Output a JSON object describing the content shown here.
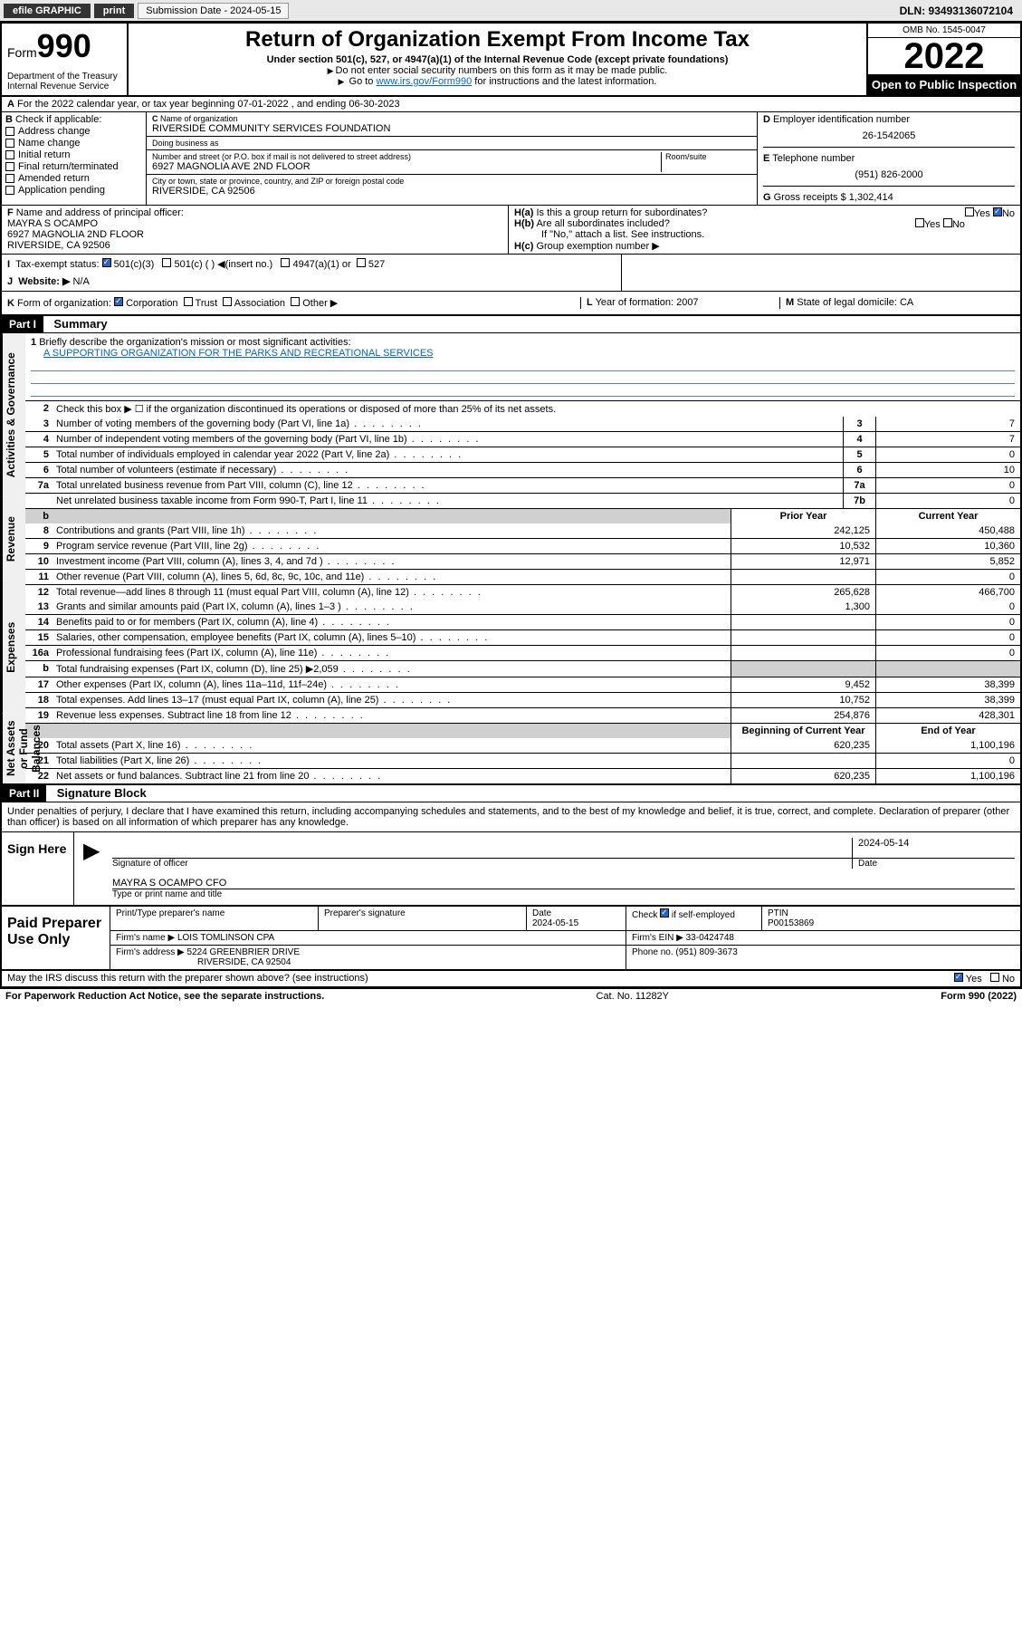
{
  "topbar": {
    "efile": "efile GRAPHIC",
    "print": "print",
    "submission": "Submission Date - 2024-05-15",
    "dln": "DLN: 93493136072104"
  },
  "header": {
    "form_word": "Form",
    "form_num": "990",
    "dept": "Department of the Treasury\nInternal Revenue Service",
    "title": "Return of Organization Exempt From Income Tax",
    "subtitle": "Under section 501(c), 527, or 4947(a)(1) of the Internal Revenue Code (except private foundations)",
    "note1": "Do not enter social security numbers on this form as it may be made public.",
    "note2_pre": "Go to ",
    "note2_link": "www.irs.gov/Form990",
    "note2_post": " for instructions and the latest information.",
    "omb": "OMB No. 1545-0047",
    "year": "2022",
    "open": "Open to Public Inspection"
  },
  "row_a": "For the 2022 calendar year, or tax year beginning 07-01-2022   , and ending 06-30-2023",
  "box_b": {
    "label": "Check if applicable:",
    "items": [
      "Address change",
      "Name change",
      "Initial return",
      "Final return/terminated",
      "Amended return",
      "Application pending"
    ]
  },
  "box_c": {
    "label_name": "Name of organization",
    "name": "RIVERSIDE COMMUNITY SERVICES FOUNDATION",
    "label_dba": "Doing business as",
    "dba": "",
    "label_addr": "Number and street (or P.O. box if mail is not delivered to street address)",
    "label_room": "Room/suite",
    "addr": "6927 MAGNOLIA AVE 2ND FLOOR",
    "label_city": "City or town, state or province, country, and ZIP or foreign postal code",
    "city": "RIVERSIDE, CA  92506"
  },
  "box_d": {
    "label": "Employer identification number",
    "val": "26-1542065"
  },
  "box_e": {
    "label": "Telephone number",
    "val": "(951) 826-2000"
  },
  "box_g": {
    "label": "Gross receipts $",
    "val": "1,302,414"
  },
  "box_f": {
    "label": "Name and address of principal officer:",
    "name": "MAYRA S OCAMPO",
    "addr1": "6927 MAGNOLIA 2ND FLOOR",
    "addr2": "RIVERSIDE, CA  92506"
  },
  "box_h": {
    "a": "Is this a group return for subordinates?",
    "a_yes": "Yes",
    "a_no": "No",
    "b": "Are all subordinates included?",
    "b_note": "If \"No,\" attach a list. See instructions.",
    "c": "Group exemption number"
  },
  "row_i": {
    "label": "Tax-exempt status:",
    "opts": [
      "501(c)(3)",
      "501(c) (  ) ◀(insert no.)",
      "4947(a)(1) or",
      "527"
    ]
  },
  "row_j": {
    "label": "Website:",
    "val": "N/A"
  },
  "row_k": {
    "label": "Form of organization:",
    "opts": [
      "Corporation",
      "Trust",
      "Association",
      "Other"
    ],
    "year_label": "Year of formation:",
    "year": "2007",
    "state_label": "State of legal domicile:",
    "state": "CA"
  },
  "part1": {
    "head": "Part I",
    "title": "Summary",
    "q1": "Briefly describe the organization's mission or most significant activities:",
    "mission": "A SUPPORTING ORGANIZATION FOR THE PARKS AND RECREATIONAL SERVICES",
    "q2": "Check this box ▶ ☐  if the organization discontinued its operations or disposed of more than 25% of its net assets.",
    "lines_gov": [
      {
        "n": "3",
        "t": "Number of voting members of the governing body (Part VI, line 1a)",
        "rn": "3",
        "v": "7"
      },
      {
        "n": "4",
        "t": "Number of independent voting members of the governing body (Part VI, line 1b)",
        "rn": "4",
        "v": "7"
      },
      {
        "n": "5",
        "t": "Total number of individuals employed in calendar year 2022 (Part V, line 2a)",
        "rn": "5",
        "v": "0"
      },
      {
        "n": "6",
        "t": "Total number of volunteers (estimate if necessary)",
        "rn": "6",
        "v": "10"
      },
      {
        "n": "7a",
        "t": "Total unrelated business revenue from Part VIII, column (C), line 12",
        "rn": "7a",
        "v": "0"
      },
      {
        "n": "",
        "t": "Net unrelated business taxable income from Form 990-T, Part I, line 11",
        "rn": "7b",
        "v": "0"
      }
    ],
    "col_head1": "Prior Year",
    "col_head2": "Current Year",
    "lines_rev": [
      {
        "n": "8",
        "t": "Contributions and grants (Part VIII, line 1h)",
        "c1": "242,125",
        "c2": "450,488"
      },
      {
        "n": "9",
        "t": "Program service revenue (Part VIII, line 2g)",
        "c1": "10,532",
        "c2": "10,360"
      },
      {
        "n": "10",
        "t": "Investment income (Part VIII, column (A), lines 3, 4, and 7d )",
        "c1": "12,971",
        "c2": "5,852"
      },
      {
        "n": "11",
        "t": "Other revenue (Part VIII, column (A), lines 5, 6d, 8c, 9c, 10c, and 11e)",
        "c1": "",
        "c2": "0"
      },
      {
        "n": "12",
        "t": "Total revenue—add lines 8 through 11 (must equal Part VIII, column (A), line 12)",
        "c1": "265,628",
        "c2": "466,700"
      }
    ],
    "lines_exp": [
      {
        "n": "13",
        "t": "Grants and similar amounts paid (Part IX, column (A), lines 1–3 )",
        "c1": "1,300",
        "c2": "0"
      },
      {
        "n": "14",
        "t": "Benefits paid to or for members (Part IX, column (A), line 4)",
        "c1": "",
        "c2": "0"
      },
      {
        "n": "15",
        "t": "Salaries, other compensation, employee benefits (Part IX, column (A), lines 5–10)",
        "c1": "",
        "c2": "0"
      },
      {
        "n": "16a",
        "t": "Professional fundraising fees (Part IX, column (A), line 11e)",
        "c1": "",
        "c2": "0"
      },
      {
        "n": "b",
        "t": "Total fundraising expenses (Part IX, column (D), line 25) ▶2,059",
        "c1": "",
        "c2": "",
        "gray": true
      },
      {
        "n": "17",
        "t": "Other expenses (Part IX, column (A), lines 11a–11d, 11f–24e)",
        "c1": "9,452",
        "c2": "38,399"
      },
      {
        "n": "18",
        "t": "Total expenses. Add lines 13–17 (must equal Part IX, column (A), line 25)",
        "c1": "10,752",
        "c2": "38,399"
      },
      {
        "n": "19",
        "t": "Revenue less expenses. Subtract line 18 from line 12",
        "c1": "254,876",
        "c2": "428,301"
      }
    ],
    "col_head3": "Beginning of Current Year",
    "col_head4": "End of Year",
    "lines_net": [
      {
        "n": "20",
        "t": "Total assets (Part X, line 16)",
        "c1": "620,235",
        "c2": "1,100,196"
      },
      {
        "n": "21",
        "t": "Total liabilities (Part X, line 26)",
        "c1": "",
        "c2": "0"
      },
      {
        "n": "22",
        "t": "Net assets or fund balances. Subtract line 21 from line 20",
        "c1": "620,235",
        "c2": "1,100,196"
      }
    ]
  },
  "part2": {
    "head": "Part II",
    "title": "Signature Block",
    "decl": "Under penalties of perjury, I declare that I have examined this return, including accompanying schedules and statements, and to the best of my knowledge and belief, it is true, correct, and complete. Declaration of preparer (other than officer) is based on all information of which preparer has any knowledge.",
    "sign_here": "Sign Here",
    "sig_officer_label": "Signature of officer",
    "sig_date": "2024-05-14",
    "sig_date_label": "Date",
    "officer_name": "MAYRA S OCAMPO  CFO",
    "officer_label": "Type or print name and title",
    "paid_prep": "Paid Preparer Use Only",
    "prep_cols": [
      "Print/Type preparer's name",
      "Preparer's signature",
      "Date",
      "",
      "PTIN"
    ],
    "prep_date": "2024-05-15",
    "prep_check": "Check ☑ if self-employed",
    "prep_ptin": "P00153869",
    "firm_name_label": "Firm's name",
    "firm_name": "LOIS TOMLINSON CPA",
    "firm_ein_label": "Firm's EIN",
    "firm_ein": "33-0424748",
    "firm_addr_label": "Firm's address",
    "firm_addr1": "5224 GREENBRIER DRIVE",
    "firm_addr2": "RIVERSIDE, CA  92504",
    "firm_phone_label": "Phone no.",
    "firm_phone": "(951) 809-3673"
  },
  "footer": {
    "discuss": "May the IRS discuss this return with the preparer shown above? (see instructions)",
    "yes": "Yes",
    "no": "No",
    "paperwork": "For Paperwork Reduction Act Notice, see the separate instructions.",
    "cat": "Cat. No. 11282Y",
    "form": "Form 990 (2022)"
  }
}
